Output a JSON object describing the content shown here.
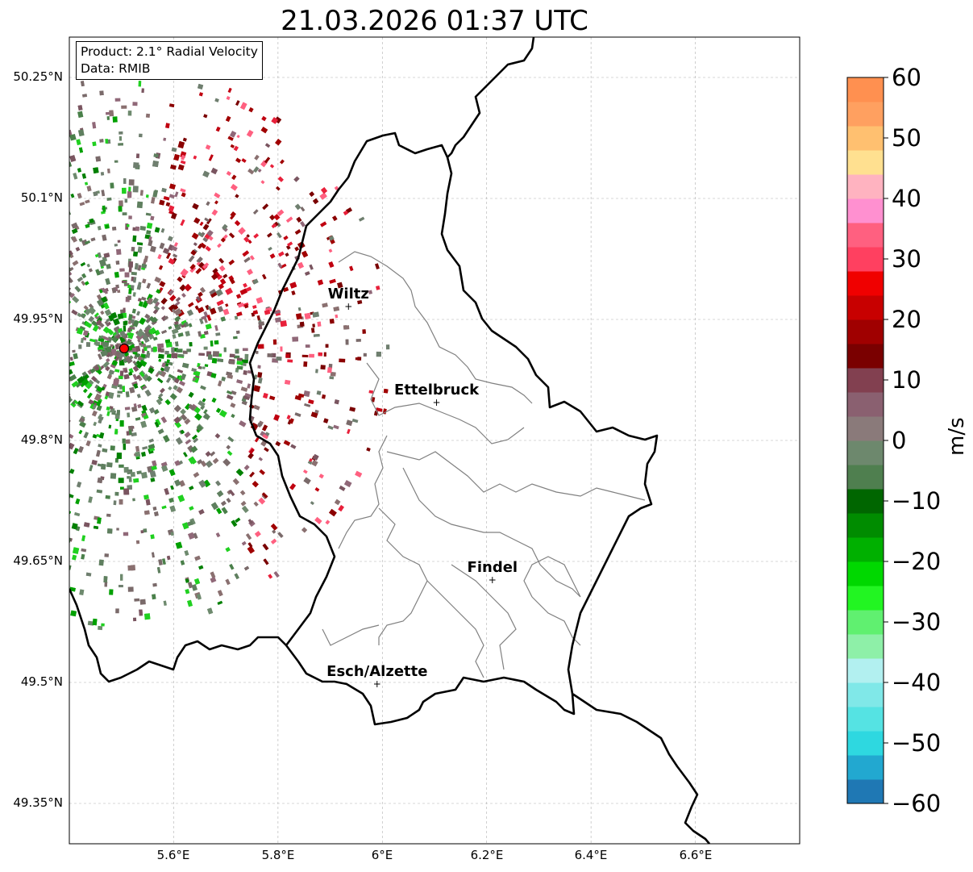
{
  "title": "21.03.2026 01:37 UTC",
  "info_box": {
    "product": "Product: 2.1° Radial Velocity",
    "data": "Data: RMIB"
  },
  "lat_labels": [
    "50.25°N",
    "50.1°N",
    "49.95°N",
    "49.8°N",
    "49.65°N",
    "49.5°N",
    "49.35°N"
  ],
  "lon_labels": [
    "5.6°E",
    "5.8°E",
    "6°E",
    "6.2°E",
    "6.4°E",
    "6.6°E"
  ],
  "cities": [
    {
      "name": "Wiltz",
      "lon": 5.935,
      "lat": 49.966
    },
    {
      "name": "Ettelbruck",
      "lon": 6.104,
      "lat": 49.847
    },
    {
      "name": "Findel",
      "lon": 6.211,
      "lat": 49.627
    },
    {
      "name": "Esch/Alzette",
      "lon": 5.99,
      "lat": 49.498
    }
  ],
  "radar_site": {
    "lon": 5.505,
    "lat": 49.914
  },
  "colorbar": {
    "label": "m/s",
    "ticks": [
      "60",
      "50",
      "40",
      "30",
      "20",
      "10",
      "0",
      "−10",
      "−20",
      "−30",
      "−40",
      "−50",
      "−60"
    ],
    "range": [
      -60,
      60
    ],
    "colors": [
      "#1f78b4",
      "#22a8d0",
      "#2ed8e0",
      "#55e3e3",
      "#80e8e8",
      "#b2f0f0",
      "#8ef0a8",
      "#60f070",
      "#22f522",
      "#00d800",
      "#00b000",
      "#008c00",
      "#006600",
      "#4f7f4f",
      "#6d886d",
      "#8a7a7a",
      "#8a6070",
      "#824050",
      "#7a0000",
      "#a00000",
      "#c80000",
      "#f00000",
      "#ff4060",
      "#ff6080",
      "#ff90d0",
      "#ffb3c0",
      "#ffe090",
      "#ffc070",
      "#ffa060",
      "#ff9050"
    ]
  },
  "chart_data": {
    "type": "map",
    "extent": {
      "lon": [
        5.4,
        6.8
      ],
      "lat": [
        49.3,
        50.3
      ]
    },
    "grid": true
  }
}
